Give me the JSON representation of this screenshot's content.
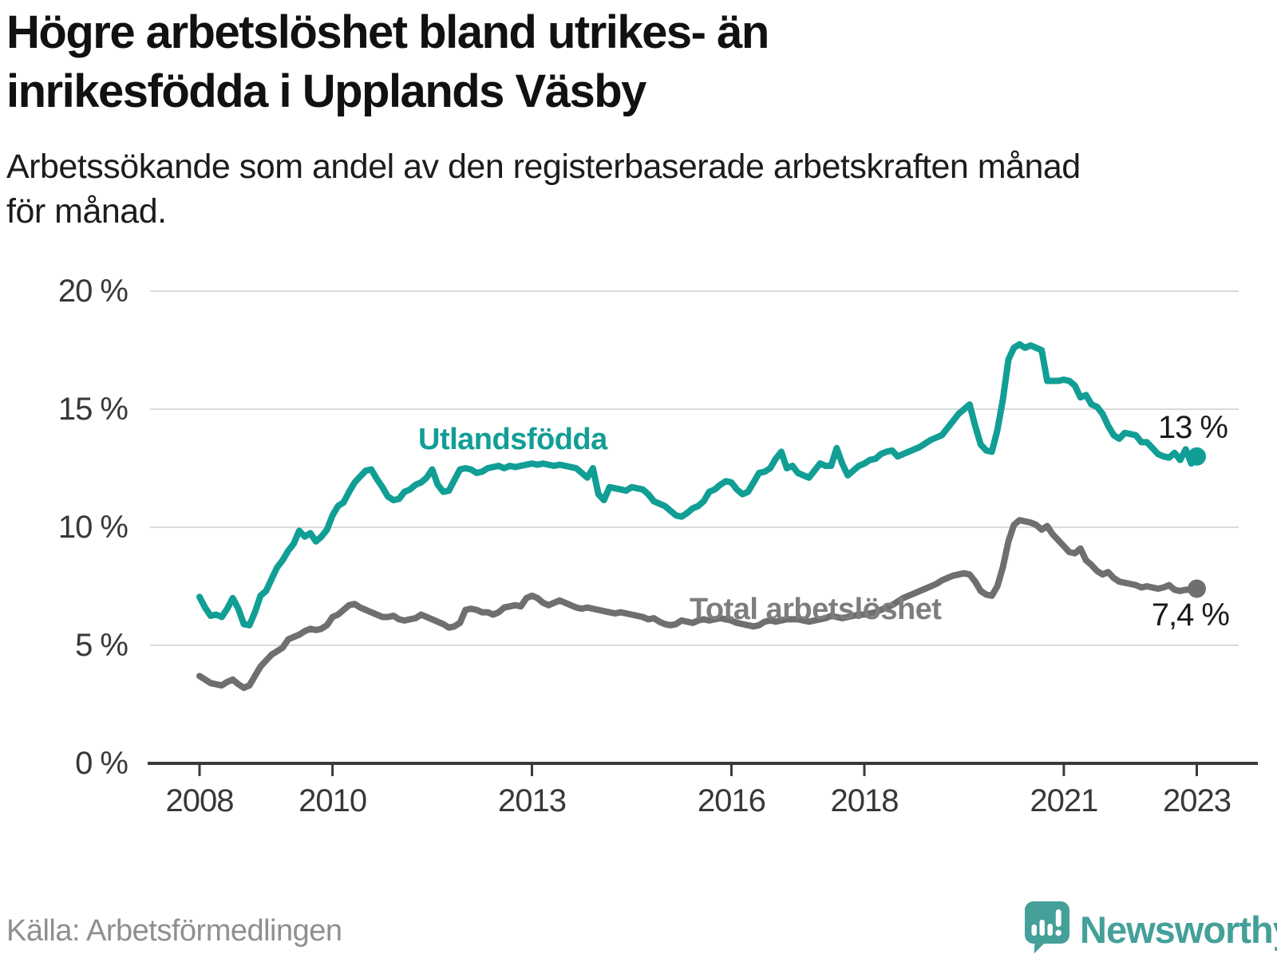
{
  "header": {
    "title": "Högre arbetslöshet bland utrikes- än\ninrikesfödda i Upplands Väsby",
    "subtitle": "Arbetssökande som andel av den registerbaserade arbetskraften månad\nför månad."
  },
  "footer": {
    "source": "Källa: Arbetsförmedlingen",
    "brand": "Newsworthy"
  },
  "colors": {
    "series_utlandsfodda": "#119E95",
    "series_total": "#6F6F6F",
    "series_total_label": "#7E7E7E",
    "brand_teal": "#44A099",
    "gridline": "#DADADA",
    "axis": "#3A3A3A",
    "value_label": "#1a1a1a"
  },
  "chart_data": {
    "type": "line",
    "title": "Högre arbetslöshet bland utrikes- än inrikesfödda i Upplands Väsby",
    "subtitle": "Arbetssökande som andel av den registerbaserade arbetskraften månad för månad.",
    "x_start": "2008-01",
    "x_end": "2023-01",
    "interval": "monthly",
    "xlabel": "",
    "ylabel": "",
    "ylim": [
      0,
      20
    ],
    "grid": "horizontal",
    "legend_position": "inline-labels",
    "y_ticks": [
      0,
      5,
      10,
      15,
      20
    ],
    "y_tick_labels": [
      "0 %",
      "5 %",
      "10 %",
      "15 %",
      "20 %"
    ],
    "x_tick_years": [
      2008,
      2010,
      2013,
      2016,
      2018,
      2021,
      2023
    ],
    "x_tick_labels": [
      "2008",
      "2010",
      "2013",
      "2016",
      "2018",
      "2021",
      "2023"
    ],
    "series": [
      {
        "name": "Utlandsfödda",
        "color": "#119E95",
        "end_label": "13 %",
        "end_value": 13.0,
        "values": [
          7.05,
          6.6,
          6.25,
          6.3,
          6.2,
          6.55,
          7.0,
          6.55,
          5.9,
          5.85,
          6.4,
          7.1,
          7.3,
          7.8,
          8.3,
          8.6,
          9.0,
          9.3,
          9.85,
          9.6,
          9.75,
          9.4,
          9.6,
          9.9,
          10.5,
          10.9,
          11.05,
          11.5,
          11.9,
          12.15,
          12.4,
          12.45,
          12.05,
          11.7,
          11.3,
          11.15,
          11.2,
          11.5,
          11.6,
          11.8,
          11.9,
          12.1,
          12.45,
          11.8,
          11.5,
          11.55,
          12.0,
          12.45,
          12.5,
          12.45,
          12.3,
          12.35,
          12.5,
          12.55,
          12.6,
          12.5,
          12.6,
          12.55,
          12.6,
          12.65,
          12.7,
          12.65,
          12.7,
          12.65,
          12.6,
          12.65,
          12.6,
          12.55,
          12.5,
          12.3,
          12.1,
          12.5,
          11.4,
          11.15,
          11.7,
          11.65,
          11.6,
          11.55,
          11.7,
          11.65,
          11.6,
          11.4,
          11.1,
          11.0,
          10.9,
          10.7,
          10.5,
          10.45,
          10.6,
          10.8,
          10.9,
          11.1,
          11.5,
          11.6,
          11.8,
          11.95,
          11.9,
          11.6,
          11.4,
          11.5,
          11.9,
          12.3,
          12.35,
          12.5,
          12.9,
          13.2,
          12.5,
          12.6,
          12.3,
          12.2,
          12.1,
          12.4,
          12.7,
          12.6,
          12.6,
          13.35,
          12.7,
          12.2,
          12.4,
          12.6,
          12.7,
          12.85,
          12.9,
          13.1,
          13.2,
          13.25,
          13.0,
          13.1,
          13.2,
          13.3,
          13.4,
          13.55,
          13.7,
          13.8,
          13.9,
          14.2,
          14.5,
          14.8,
          15.0,
          15.2,
          14.3,
          13.5,
          13.25,
          13.2,
          14.1,
          15.4,
          17.1,
          17.6,
          17.75,
          17.6,
          17.7,
          17.6,
          17.5,
          16.2,
          16.2,
          16.2,
          16.25,
          16.2,
          16.0,
          15.5,
          15.6,
          15.2,
          15.1,
          14.8,
          14.3,
          13.9,
          13.75,
          14.0,
          13.95,
          13.9,
          13.6,
          13.6,
          13.35,
          13.1,
          13.0,
          12.95,
          13.15,
          12.85,
          13.3,
          12.7,
          13.0
        ]
      },
      {
        "name": "Total arbetslöshet",
        "color": "#6F6F6F",
        "end_label": "7,4 %",
        "end_value": 7.4,
        "values": [
          3.7,
          3.55,
          3.4,
          3.35,
          3.3,
          3.45,
          3.55,
          3.35,
          3.2,
          3.3,
          3.7,
          4.1,
          4.35,
          4.6,
          4.75,
          4.9,
          5.25,
          5.35,
          5.45,
          5.6,
          5.7,
          5.65,
          5.7,
          5.85,
          6.2,
          6.3,
          6.5,
          6.7,
          6.75,
          6.6,
          6.5,
          6.4,
          6.3,
          6.2,
          6.2,
          6.25,
          6.1,
          6.05,
          6.1,
          6.15,
          6.3,
          6.2,
          6.1,
          6.0,
          5.9,
          5.75,
          5.8,
          5.95,
          6.5,
          6.55,
          6.5,
          6.4,
          6.4,
          6.3,
          6.4,
          6.6,
          6.65,
          6.7,
          6.65,
          7.0,
          7.1,
          7.0,
          6.8,
          6.7,
          6.8,
          6.9,
          6.8,
          6.7,
          6.6,
          6.55,
          6.6,
          6.55,
          6.5,
          6.45,
          6.4,
          6.35,
          6.4,
          6.35,
          6.3,
          6.25,
          6.2,
          6.1,
          6.15,
          6.0,
          5.9,
          5.85,
          5.9,
          6.05,
          6.0,
          5.95,
          6.05,
          6.1,
          6.05,
          6.1,
          6.15,
          6.1,
          6.05,
          5.95,
          5.9,
          5.85,
          5.8,
          5.85,
          6.0,
          6.05,
          6.0,
          6.05,
          6.1,
          6.1,
          6.1,
          6.05,
          6.0,
          6.05,
          6.1,
          6.15,
          6.25,
          6.2,
          6.15,
          6.2,
          6.25,
          6.3,
          6.3,
          6.35,
          6.4,
          6.5,
          6.6,
          6.7,
          6.85,
          7.0,
          7.1,
          7.2,
          7.3,
          7.4,
          7.5,
          7.6,
          7.75,
          7.85,
          7.95,
          8.0,
          8.05,
          8.0,
          7.7,
          7.3,
          7.15,
          7.1,
          7.5,
          8.3,
          9.4,
          10.1,
          10.3,
          10.25,
          10.2,
          10.1,
          9.9,
          10.05,
          9.7,
          9.45,
          9.2,
          8.95,
          8.9,
          9.1,
          8.6,
          8.4,
          8.15,
          8.0,
          8.1,
          7.85,
          7.7,
          7.65,
          7.6,
          7.55,
          7.45,
          7.5,
          7.45,
          7.4,
          7.45,
          7.55,
          7.35,
          7.3,
          7.35,
          7.35,
          7.4
        ]
      }
    ]
  }
}
